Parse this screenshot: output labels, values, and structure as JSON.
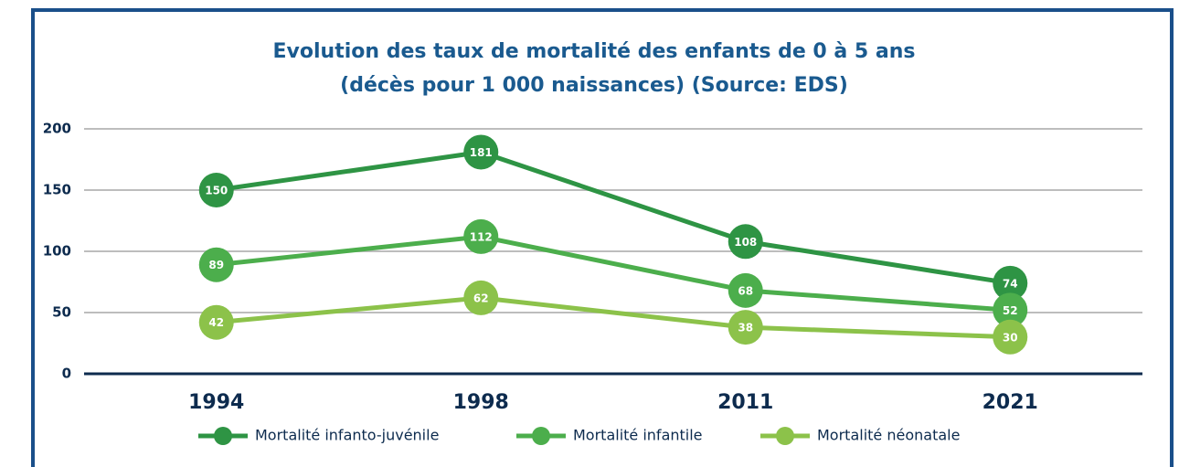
{
  "chart_data": {
    "type": "line",
    "title": [
      "Evolution des taux de mortalité des enfants de 0 à 5 ans",
      "(décès pour 1 000 naissances) (Source: EDS)"
    ],
    "categories": [
      "1994",
      "1998",
      "2011",
      "2021"
    ],
    "series": [
      {
        "name": "Mortalité infanto-juvénile",
        "color": "#2e9444",
        "values": [
          150,
          181,
          108,
          74
        ]
      },
      {
        "name": "Mortalité infantile",
        "color": "#4cae4c",
        "values": [
          89,
          112,
          68,
          52
        ]
      },
      {
        "name": "Mortalité néonatale",
        "color": "#8cc24a",
        "values": [
          42,
          62,
          38,
          30
        ]
      }
    ],
    "ylim": [
      0,
      200
    ],
    "yticks": [
      0,
      50,
      100,
      150,
      200
    ],
    "grid": true,
    "legend": "bottom"
  }
}
